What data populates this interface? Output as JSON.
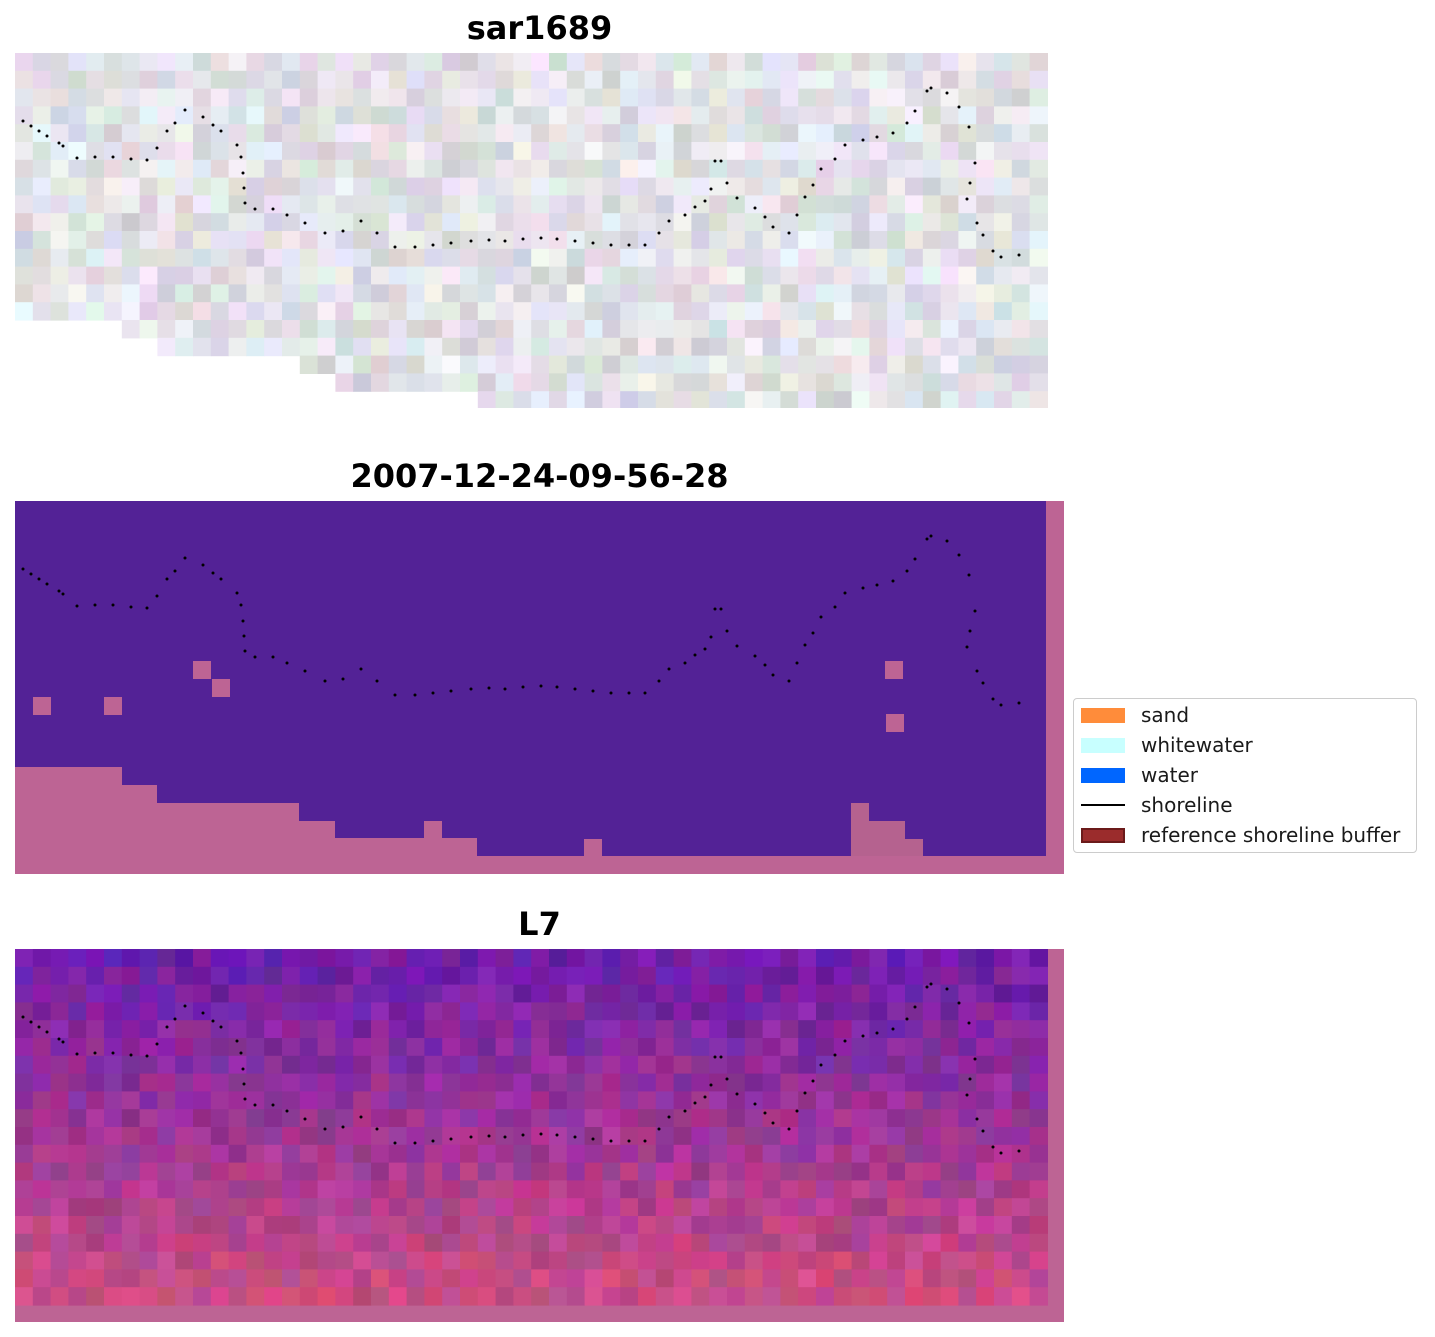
{
  "panels": [
    {
      "title": "sar1689",
      "kind": "rgb"
    },
    {
      "title": "2007-12-24-09-56-28",
      "kind": "classification"
    },
    {
      "title": "L7",
      "kind": "overlay"
    }
  ],
  "legend": {
    "items": [
      {
        "label": "sand",
        "color": "#ff8c3a",
        "type": "patch"
      },
      {
        "label": "whitewater",
        "color": "#c8ffff",
        "type": "patch"
      },
      {
        "label": "water",
        "color": "#0066ff",
        "type": "patch"
      },
      {
        "label": "shoreline",
        "color": "#000000",
        "type": "line"
      },
      {
        "label": "reference shoreline buffer",
        "color": "#9b2c2c",
        "edge": "#6b1a1a",
        "type": "patch"
      }
    ]
  },
  "colors": {
    "background_purple": "#532296",
    "buffer_pink": "#bd6494",
    "nodata_white": "#ffffff"
  }
}
